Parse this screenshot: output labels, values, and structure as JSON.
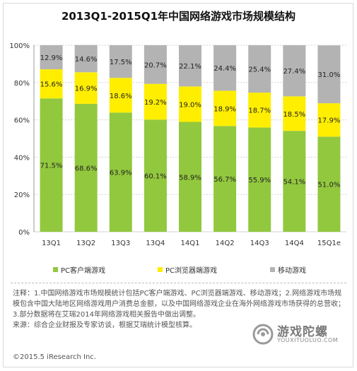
{
  "chart_data": {
    "type": "bar",
    "stacked": true,
    "percent": true,
    "title": "2013Q1-2015Q1年中国网络游戏市场规模结构",
    "categories": [
      "13Q1",
      "13Q2",
      "13Q3",
      "13Q4",
      "14Q1",
      "14Q2",
      "14Q3",
      "14Q4",
      "15Q1e"
    ],
    "series": [
      {
        "name": "PC客户端游戏",
        "color": "#92c83e",
        "values": [
          71.5,
          68.6,
          63.9,
          60.1,
          58.9,
          56.7,
          55.9,
          54.1,
          51.0
        ],
        "labels": [
          "71.5%",
          "68.6%",
          "63.9%",
          "60.1%",
          "58.9%",
          "56.7%",
          "55.9%",
          "54.1%",
          "51.0%"
        ]
      },
      {
        "name": "PC浏览器端游戏",
        "color": "#ffee00",
        "values": [
          15.6,
          16.9,
          18.6,
          19.2,
          19.0,
          18.9,
          18.7,
          18.5,
          17.9
        ],
        "labels": [
          "15.6%",
          "16.9%",
          "18.6%",
          "19.2%",
          "19.0%",
          "18.9%",
          "18.7%",
          "18.5%",
          "17.9%"
        ]
      },
      {
        "name": "移动游戏",
        "color": "#b3b3b3",
        "values": [
          12.9,
          14.6,
          17.5,
          20.7,
          22.1,
          24.4,
          25.4,
          27.4,
          31.0
        ],
        "labels": [
          "12.9%",
          "14.6%",
          "17.5%",
          "20.7%",
          "22.1%",
          "24.4%",
          "25.4%",
          "27.4%",
          "31.0%"
        ]
      }
    ],
    "yticks": [
      "0%",
      "20%",
      "40%",
      "60%",
      "80%",
      "100%"
    ],
    "ylim": [
      0,
      100
    ],
    "grid": true,
    "legend": "bottom"
  },
  "notes": {
    "line1": "注释：1.中国网络游戏市场规模统计包括PC客户端游戏、PC浏览器端游戏、移动游戏；2.网络游戏市场规模包含中国大陆地区网络游戏用户消费总金额，以及中国网络游戏企业在海外网络游戏市场获得的总营收；3.部分数据将在艾瑞2014年网络游戏相关报告中做出调整。",
    "line2": "来源：综合企业财报及专家访谈，根据艾瑞统计模型核算。"
  },
  "copyright": "©2015.5 iResearch Inc.",
  "watermark": {
    "name": "游戏陀螺",
    "url": "YOUXITUOLUO.COM",
    "icon": "gyroscope-logo-icon"
  }
}
